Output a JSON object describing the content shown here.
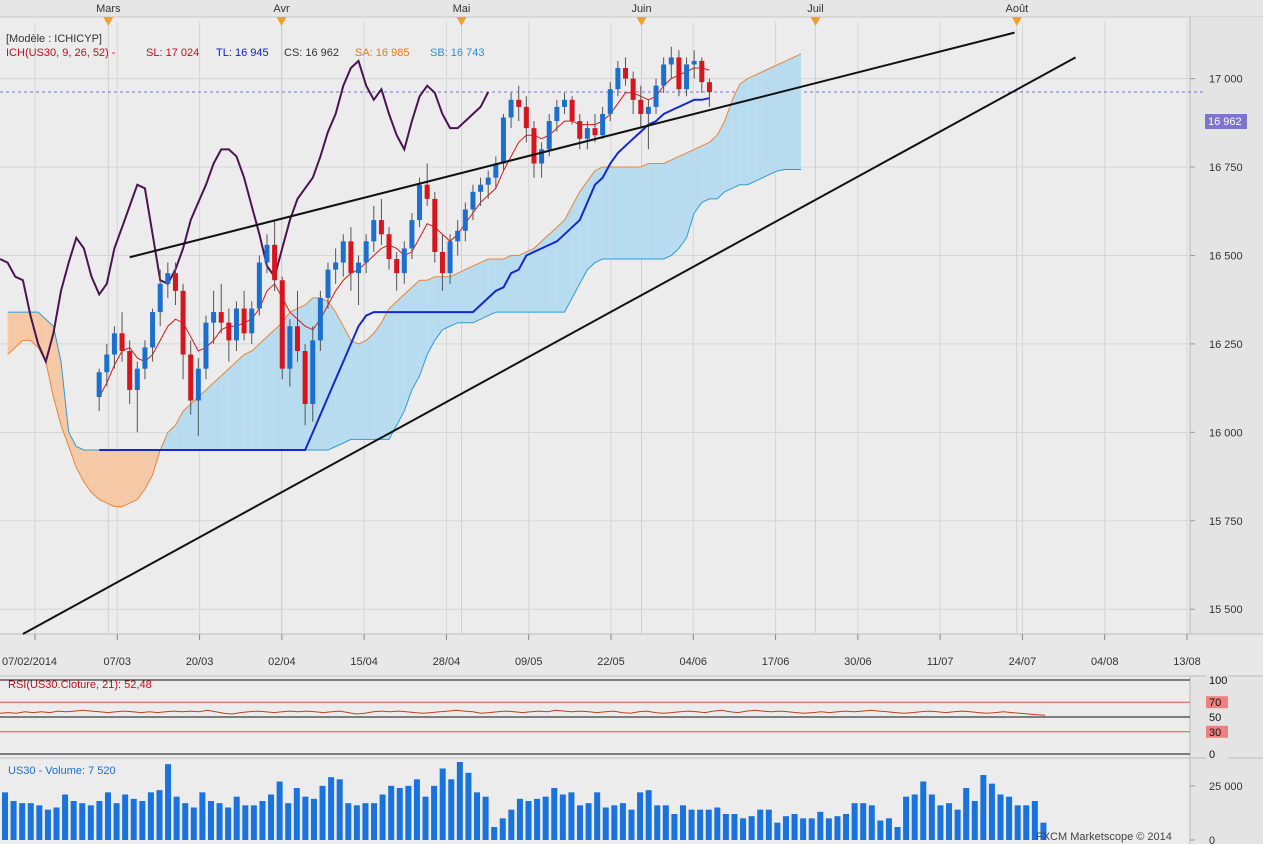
{
  "chart_data": {
    "type": "candlestick",
    "instrument": "US30",
    "months": [
      {
        "label": "Mars",
        "x": 1.2
      },
      {
        "label": "Avr",
        "x": 23.9
      },
      {
        "label": "Mai",
        "x": 47.5
      },
      {
        "label": "Juin",
        "x": 71.1
      },
      {
        "label": "Juil",
        "x": 93.9
      },
      {
        "label": "Août",
        "x": 120.3
      }
    ],
    "date_ticks": [
      "07/02/2014",
      "07/03",
      "20/03",
      "02/04",
      "15/04",
      "28/04",
      "09/05",
      "22/05",
      "04/06",
      "17/06",
      "30/06",
      "11/07",
      "24/07",
      "04/08",
      "13/08"
    ],
    "price_ticks": [
      15500,
      15750,
      16000,
      16250,
      16500,
      16750,
      17000
    ],
    "ylim": [
      15430,
      17160
    ],
    "xlim": [
      -13,
      143
    ],
    "legend": {
      "model": "[Modèle : ICHICYP]",
      "ich": "ICH(US30, 9, 26, 52) -",
      "sl": "SL: 17 024",
      "tl": "TL: 16 945",
      "cs": "CS: 16 962",
      "sa": "SA: 16 985",
      "sb": "SB: 16 743"
    },
    "last_price_label": "16 962",
    "last_price": 16962,
    "candles": [
      [
        16100,
        16180,
        16060,
        16170
      ],
      [
        16170,
        16250,
        16130,
        16220
      ],
      [
        16220,
        16300,
        16180,
        16280
      ],
      [
        16280,
        16340,
        16200,
        16230
      ],
      [
        16230,
        16260,
        16080,
        16120
      ],
      [
        16120,
        16200,
        16000,
        16180
      ],
      [
        16180,
        16260,
        16150,
        16240
      ],
      [
        16240,
        16350,
        16200,
        16340
      ],
      [
        16340,
        16460,
        16300,
        16420
      ],
      [
        16420,
        16480,
        16380,
        16450
      ],
      [
        16450,
        16480,
        16360,
        16400
      ],
      [
        16400,
        16420,
        16150,
        16220
      ],
      [
        16220,
        16260,
        16050,
        16090
      ],
      [
        16090,
        16210,
        15990,
        16180
      ],
      [
        16180,
        16330,
        16150,
        16310
      ],
      [
        16310,
        16400,
        16250,
        16340
      ],
      [
        16340,
        16420,
        16280,
        16310
      ],
      [
        16310,
        16350,
        16200,
        16260
      ],
      [
        16260,
        16370,
        16230,
        16350
      ],
      [
        16350,
        16400,
        16260,
        16280
      ],
      [
        16280,
        16370,
        16250,
        16350
      ],
      [
        16350,
        16500,
        16330,
        16480
      ],
      [
        16480,
        16560,
        16450,
        16530
      ],
      [
        16530,
        16600,
        16400,
        16430
      ],
      [
        16430,
        16440,
        16150,
        16180
      ],
      [
        16180,
        16320,
        16130,
        16300
      ],
      [
        16300,
        16400,
        16200,
        16230
      ],
      [
        16230,
        16250,
        16020,
        16080
      ],
      [
        16080,
        16300,
        16030,
        16260
      ],
      [
        16260,
        16400,
        16230,
        16380
      ],
      [
        16380,
        16480,
        16350,
        16460
      ],
      [
        16460,
        16520,
        16420,
        16480
      ],
      [
        16480,
        16560,
        16440,
        16540
      ],
      [
        16540,
        16580,
        16400,
        16450
      ],
      [
        16450,
        16500,
        16360,
        16480
      ],
      [
        16480,
        16560,
        16450,
        16540
      ],
      [
        16540,
        16640,
        16510,
        16600
      ],
      [
        16600,
        16660,
        16530,
        16560
      ],
      [
        16560,
        16580,
        16460,
        16490
      ],
      [
        16490,
        16510,
        16400,
        16450
      ],
      [
        16450,
        16540,
        16420,
        16520
      ],
      [
        16520,
        16620,
        16490,
        16600
      ],
      [
        16600,
        16720,
        16580,
        16700
      ],
      [
        16700,
        16760,
        16640,
        16660
      ],
      [
        16660,
        16680,
        16480,
        16510
      ],
      [
        16510,
        16560,
        16400,
        16450
      ],
      [
        16450,
        16560,
        16420,
        16540
      ],
      [
        16540,
        16600,
        16500,
        16570
      ],
      [
        16570,
        16650,
        16540,
        16630
      ],
      [
        16630,
        16700,
        16600,
        16680
      ],
      [
        16680,
        16720,
        16640,
        16700
      ],
      [
        16700,
        16740,
        16660,
        16720
      ],
      [
        16720,
        16780,
        16690,
        16760
      ],
      [
        16760,
        16900,
        16740,
        16890
      ],
      [
        16890,
        16960,
        16860,
        16940
      ],
      [
        16940,
        16980,
        16880,
        16920
      ],
      [
        16920,
        16950,
        16820,
        16860
      ],
      [
        16860,
        16880,
        16720,
        16760
      ],
      [
        16760,
        16820,
        16720,
        16800
      ],
      [
        16800,
        16900,
        16780,
        16880
      ],
      [
        16880,
        16940,
        16850,
        16920
      ],
      [
        16920,
        16960,
        16900,
        16940
      ],
      [
        16940,
        16950,
        16870,
        16880
      ],
      [
        16880,
        16900,
        16800,
        16830
      ],
      [
        16830,
        16880,
        16800,
        16860
      ],
      [
        16860,
        16900,
        16820,
        16840
      ],
      [
        16840,
        16920,
        16830,
        16900
      ],
      [
        16900,
        16990,
        16880,
        16970
      ],
      [
        16970,
        17050,
        16950,
        17030
      ],
      [
        17030,
        17060,
        16980,
        17000
      ],
      [
        17000,
        17020,
        16900,
        16940
      ],
      [
        16940,
        16980,
        16860,
        16900
      ],
      [
        16900,
        16940,
        16800,
        16920
      ],
      [
        16920,
        17000,
        16900,
        16980
      ],
      [
        16980,
        17060,
        16960,
        17040
      ],
      [
        17040,
        17090,
        17000,
        17060
      ],
      [
        17060,
        17080,
        16950,
        16970
      ],
      [
        16970,
        17060,
        16950,
        17040
      ],
      [
        17040,
        17080,
        17000,
        17050
      ],
      [
        17050,
        17060,
        16960,
        16990
      ],
      [
        16990,
        17000,
        16920,
        16962
      ]
    ],
    "tenkan": [
      16100,
      16140,
      16190,
      16230,
      16240,
      16210,
      16200,
      16220,
      16260,
      16300,
      16320,
      16310,
      16270,
      16230,
      16240,
      16260,
      16290,
      16300,
      16300,
      16310,
      16320,
      16350,
      16400,
      16420,
      16380,
      16340,
      16320,
      16300,
      16290,
      16320,
      16360,
      16400,
      16430,
      16450,
      16460,
      16480,
      16500,
      16520,
      16530,
      16520,
      16500,
      16510,
      16550,
      16590,
      16580,
      16560,
      16540,
      16560,
      16590,
      16620,
      16650,
      16670,
      16690,
      16740,
      16780,
      16820,
      16840,
      16840,
      16830,
      16840,
      16860,
      16880,
      16880,
      16870,
      16870,
      16870,
      16880,
      16900,
      16930,
      16960,
      16960,
      16950,
      16940,
      16950,
      16980,
      17000,
      17010,
      17020,
      17030,
      17030,
      17024
    ],
    "kijun": [
      15950,
      15950,
      15950,
      15950,
      15950,
      15950,
      15950,
      15950,
      15950,
      15950,
      15950,
      15950,
      15950,
      15950,
      15950,
      15950,
      15950,
      15950,
      15950,
      15950,
      15950,
      15950,
      15950,
      15950,
      15950,
      15950,
      15950,
      15950,
      16000,
      16050,
      16100,
      16150,
      16200,
      16250,
      16300,
      16330,
      16340,
      16340,
      16340,
      16340,
      16340,
      16340,
      16340,
      16340,
      16340,
      16340,
      16340,
      16340,
      16340,
      16340,
      16360,
      16380,
      16400,
      16410,
      16450,
      16460,
      16500,
      16510,
      16520,
      16530,
      16540,
      16560,
      16580,
      16600,
      16650,
      16700,
      16720,
      16760,
      16790,
      16810,
      16830,
      16850,
      16870,
      16880,
      16900,
      16910,
      16920,
      16930,
      16940,
      16940,
      16945
    ],
    "chikou": [
      16490,
      16480,
      16440,
      16430,
      16330,
      16250,
      16200,
      16280,
      16400,
      16480,
      16550,
      16520,
      16440,
      16390,
      16420,
      16520,
      16580,
      16640,
      16700,
      16690,
      16560,
      16430,
      16420,
      16460,
      16520,
      16600,
      16650,
      16700,
      16760,
      16800,
      16800,
      16780,
      16720,
      16640,
      16560,
      16470,
      16440,
      16520,
      16600,
      16660,
      16690,
      16720,
      16780,
      16850,
      16900,
      16980,
      17030,
      17050,
      16980,
      16940,
      16970,
      16900,
      16840,
      16800,
      16880,
      16950,
      16980,
      16960,
      16900,
      16860,
      16860,
      16880,
      16900,
      16920,
      16962
    ],
    "senkou_a": [
      16220,
      16240,
      16260,
      16260,
      16240,
      16200,
      16100,
      16020,
      15960,
      15900,
      15860,
      15830,
      15810,
      15800,
      15790,
      15790,
      15800,
      15810,
      15840,
      15880,
      15950,
      16000,
      16020,
      16060,
      16080,
      16100,
      16120,
      16140,
      16160,
      16180,
      16200,
      16220,
      16230,
      16250,
      16270,
      16290,
      16310,
      16340,
      16350,
      16360,
      16380,
      16380,
      16370,
      16340,
      16300,
      16260,
      16250,
      16260,
      16280,
      16310,
      16350,
      16370,
      16390,
      16410,
      16430,
      16430,
      16440,
      16440,
      16440,
      16450,
      16460,
      16470,
      16480,
      16490,
      16490,
      16490,
      16500,
      16500,
      16510,
      16520,
      16540,
      16560,
      16580,
      16600,
      16640,
      16680,
      16710,
      16740,
      16750,
      16750,
      16750,
      16750,
      16750,
      16750,
      16760,
      16760,
      16760,
      16770,
      16780,
      16790,
      16800,
      16810,
      16820,
      16840,
      16880,
      16940,
      16985,
      17000,
      17010,
      17020,
      17030,
      17040,
      17050,
      17060,
      17070
    ],
    "senkou_b": [
      16340,
      16340,
      16340,
      16340,
      16340,
      16320,
      16300,
      16200,
      16000,
      15960,
      15950,
      15950,
      15950,
      15950,
      15950,
      15950,
      15950,
      15950,
      15950,
      15950,
      15950,
      15950,
      15950,
      15950,
      15950,
      15950,
      15950,
      15950,
      15950,
      15950,
      15950,
      15950,
      15950,
      15950,
      15950,
      15950,
      15950,
      15950,
      15950,
      15950,
      15950,
      15950,
      15950,
      15960,
      15970,
      15980,
      15980,
      15980,
      15980,
      15980,
      15980,
      16020,
      16060,
      16120,
      16160,
      16220,
      16260,
      16290,
      16300,
      16310,
      16310,
      16310,
      16320,
      16330,
      16340,
      16340,
      16340,
      16340,
      16340,
      16340,
      16340,
      16340,
      16340,
      16340,
      16380,
      16420,
      16460,
      16480,
      16490,
      16490,
      16490,
      16490,
      16490,
      16490,
      16490,
      16490,
      16490,
      16500,
      16520,
      16550,
      16620,
      16650,
      16660,
      16660,
      16680,
      16690,
      16700,
      16700,
      16710,
      16720,
      16730,
      16740,
      16743,
      16743,
      16743
    ],
    "senkou_offset": -12,
    "resistance_line": {
      "x": [
        4,
        120
      ],
      "y": [
        16495,
        17130
      ]
    },
    "support_line": {
      "x": [
        -10,
        128
      ],
      "y": [
        15430,
        17060
      ]
    },
    "rsi": {
      "label": "RSI(US30.Cloture, 21): 52,48",
      "levels": [
        100,
        70,
        50,
        30,
        0
      ],
      "level_labels": [
        "100",
        "70",
        "50",
        "30",
        "0"
      ],
      "values": [
        55,
        56,
        55,
        57,
        56,
        57,
        56,
        58,
        57,
        58,
        59,
        58,
        57,
        56,
        57,
        58,
        57,
        56,
        57,
        56,
        57,
        58,
        57,
        58,
        57,
        59,
        57,
        55,
        54,
        56,
        57,
        58,
        57,
        56,
        57,
        58,
        57,
        58,
        57,
        56,
        57,
        58,
        56,
        54,
        55,
        57,
        58,
        57,
        58,
        57,
        56,
        55,
        56,
        57,
        58,
        59,
        58,
        57,
        55,
        56,
        57,
        58,
        57,
        56,
        57,
        58,
        57,
        59,
        58,
        57,
        58,
        57,
        56,
        57,
        58,
        56,
        55,
        57,
        58,
        56,
        55,
        56,
        57,
        58,
        57,
        56,
        58,
        59,
        57,
        56,
        58,
        59,
        58,
        57,
        58,
        57,
        56,
        55,
        56,
        57,
        56,
        57,
        58,
        57,
        58,
        59,
        58,
        57,
        56,
        55,
        56,
        57,
        58,
        57,
        56,
        57,
        58,
        57,
        56,
        55,
        56,
        57,
        56,
        55,
        54,
        53,
        52.48
      ],
      "xlim": [
        0,
        126
      ],
      "ylim": [
        0,
        100
      ]
    },
    "volume": {
      "label": "US30 - Volume: 7 520",
      "ticks": [
        0,
        25000
      ],
      "tick_labels": [
        "0",
        "25 000"
      ],
      "ylim": [
        0,
        36000
      ],
      "values": [
        22000,
        18000,
        17000,
        17000,
        16000,
        14000,
        15000,
        21000,
        18000,
        17000,
        16000,
        18000,
        22000,
        17000,
        21000,
        19000,
        18000,
        22000,
        23000,
        35000,
        20000,
        17000,
        15000,
        22000,
        18000,
        17000,
        15000,
        20000,
        16000,
        16000,
        18000,
        21000,
        27000,
        17000,
        24000,
        20000,
        19000,
        25000,
        29000,
        28000,
        17000,
        16000,
        17000,
        17000,
        21000,
        25000,
        24000,
        25000,
        28000,
        20000,
        25000,
        33000,
        28000,
        36000,
        31000,
        22000,
        20000,
        6000,
        10000,
        14000,
        19000,
        18000,
        19000,
        20000,
        24000,
        21000,
        22000,
        16000,
        17000,
        22000,
        15000,
        16000,
        17000,
        14000,
        22000,
        23000,
        16000,
        16000,
        12000,
        16000,
        14000,
        14000,
        14000,
        15000,
        12000,
        12000,
        10000,
        11000,
        14000,
        14000,
        8000,
        11000,
        12000,
        10000,
        10000,
        13000,
        10000,
        11000,
        12000,
        17000,
        17000,
        16000,
        9000,
        10000,
        6000,
        20000,
        21000,
        27000,
        21000,
        16000,
        17000,
        14000,
        24000,
        18000,
        30000,
        26000,
        21000,
        20000,
        16000,
        16000,
        18000,
        8000
      ],
      "xlim": [
        0,
        123
      ]
    },
    "footer": "FXCM Marketscope © 2014"
  }
}
